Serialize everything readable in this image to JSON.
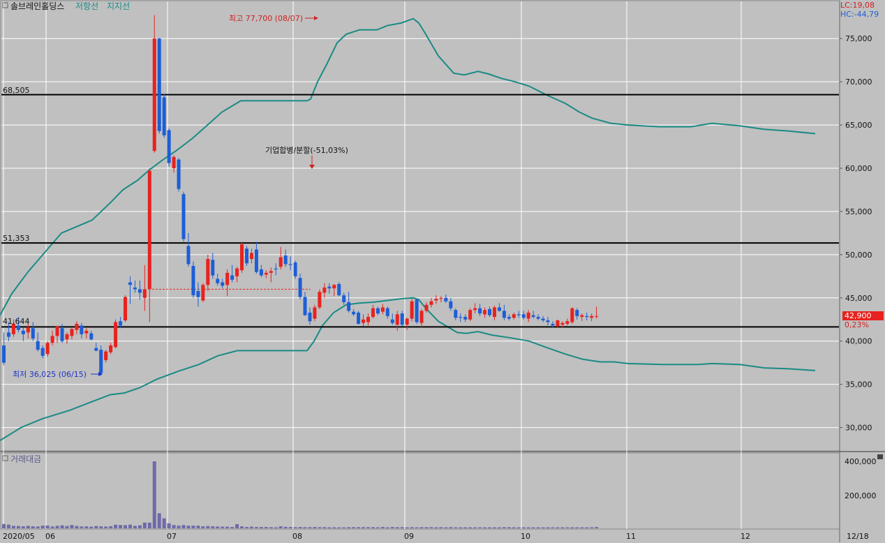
{
  "header": {
    "stock_name": "솔브레인홀딩스",
    "resistance_label": "저항선",
    "support_label": "지지선",
    "lc_label": "LC:19,08",
    "hc_label": "HC:-44,79"
  },
  "volume_panel": {
    "title": "거래대금",
    "ticks": [
      "400,000",
      "200,000"
    ]
  },
  "annotations": {
    "high": "최고 77,700 (08/07)",
    "low": "최저 36,025 (06/15)",
    "split_event": "기업합병/분할(-51,03%)",
    "current_price": "42,900",
    "change_pct": "0,23%",
    "line_68505": "68,505",
    "line_51353": "51,353",
    "line_41644": "41,644"
  },
  "colors": {
    "background": "#c0c0c0",
    "up": "#e8221e",
    "down": "#1c5ed6",
    "band": "#1a8a84",
    "volume": "#6f6ba8",
    "annotation_high": "#d42020",
    "annotation_low": "#1e32c8"
  },
  "chart_data": {
    "type": "candlestick",
    "ylim": [
      27000,
      80000
    ],
    "y_ticks": [
      30000,
      35000,
      40000,
      45000,
      50000,
      55000,
      60000,
      65000,
      70000,
      75000
    ],
    "y_tick_labels": [
      "30,000",
      "35,000",
      "40,000",
      "45,000",
      "50,000",
      "55,000",
      "60,000",
      "65,000",
      "70,000",
      "75,000"
    ],
    "x_labels": [
      "2020/05",
      "06",
      "07",
      "08",
      "09",
      "10",
      "11",
      "12",
      "12/18"
    ],
    "horizontal_lines": [
      68505,
      51353,
      41644
    ],
    "split_marker_price": 46000,
    "volume_ylim": [
      0,
      420000
    ],
    "candles": [
      [
        39500,
        41000,
        37200,
        37500,
        26000
      ],
      [
        41000,
        42200,
        40000,
        40500,
        22000
      ],
      [
        40800,
        42500,
        40500,
        42000,
        15000
      ],
      [
        41800,
        42800,
        41000,
        41300,
        14000
      ],
      [
        41200,
        41600,
        40000,
        40800,
        12000
      ],
      [
        41000,
        42000,
        40300,
        41600,
        15000
      ],
      [
        41500,
        42200,
        40000,
        40300,
        12000
      ],
      [
        40000,
        41000,
        38800,
        39000,
        11000
      ],
      [
        39200,
        39500,
        38000,
        38300,
        16000
      ],
      [
        38500,
        40000,
        38200,
        39800,
        17000
      ],
      [
        39800,
        41200,
        39500,
        40600,
        11000
      ],
      [
        40600,
        41800,
        39800,
        41700,
        15000
      ],
      [
        41500,
        42000,
        39800,
        40000,
        18000
      ],
      [
        40200,
        41000,
        39700,
        40800,
        14000
      ],
      [
        40600,
        41600,
        40200,
        41400,
        20000
      ],
      [
        41300,
        42300,
        40800,
        42000,
        14000
      ],
      [
        41800,
        42100,
        40300,
        40800,
        11000
      ],
      [
        40900,
        41500,
        40300,
        41200,
        12000
      ],
      [
        40900,
        41200,
        40100,
        40200,
        10000
      ],
      [
        39200,
        39800,
        38800,
        38900,
        14000
      ],
      [
        39000,
        39500,
        36025,
        36300,
        12000
      ],
      [
        37800,
        39000,
        37500,
        38800,
        11000
      ],
      [
        38700,
        39800,
        38500,
        39500,
        13000
      ],
      [
        39300,
        42500,
        39200,
        42200,
        22000
      ],
      [
        42300,
        42800,
        41500,
        41800,
        20000
      ],
      [
        42400,
        45300,
        42200,
        45100,
        19000
      ],
      [
        46800,
        47500,
        44300,
        46500,
        22000
      ],
      [
        46200,
        47000,
        45600,
        46000,
        15000
      ],
      [
        46000,
        47000,
        44800,
        45600,
        18000
      ],
      [
        45000,
        48800,
        43500,
        46000,
        34000
      ],
      [
        46000,
        60000,
        42200,
        59700,
        34000
      ],
      [
        62000,
        77700,
        61800,
        75000,
        400000
      ],
      [
        75000,
        75100,
        64000,
        64300,
        90000
      ],
      [
        68200,
        68600,
        63500,
        63800,
        60000
      ],
      [
        64400,
        64600,
        60200,
        60600,
        30000
      ],
      [
        60000,
        61500,
        59500,
        61300,
        20000
      ],
      [
        61000,
        61200,
        57300,
        57600,
        16000
      ],
      [
        57000,
        57300,
        51500,
        51800,
        20000
      ],
      [
        51000,
        52500,
        48600,
        48900,
        16000
      ],
      [
        48700,
        49200,
        45000,
        45300,
        16000
      ],
      [
        45800,
        46800,
        44000,
        45100,
        16000
      ],
      [
        44700,
        46700,
        44500,
        46500,
        12000
      ],
      [
        46500,
        50000,
        45800,
        49500,
        14000
      ],
      [
        49400,
        50200,
        47200,
        47600,
        12000
      ],
      [
        47200,
        47800,
        46400,
        46700,
        11000
      ],
      [
        46800,
        47200,
        46100,
        46400,
        10000
      ],
      [
        46500,
        48300,
        45200,
        47900,
        10000
      ],
      [
        47600,
        48800,
        46800,
        47100,
        8000
      ],
      [
        47500,
        48600,
        46800,
        48400,
        25000
      ],
      [
        48200,
        51500,
        47900,
        51200,
        12000
      ],
      [
        50700,
        51000,
        48700,
        49000,
        8000
      ],
      [
        49500,
        50700,
        49000,
        50200,
        10000
      ],
      [
        50600,
        51500,
        47800,
        48000,
        8000
      ],
      [
        48300,
        48800,
        47400,
        47600,
        8000
      ],
      [
        47700,
        48200,
        47300,
        47900,
        8000
      ],
      [
        47900,
        48500,
        46800,
        48100,
        7000
      ],
      [
        48400,
        49000,
        47600,
        48300,
        6000
      ],
      [
        48600,
        50900,
        48300,
        49700,
        12000
      ],
      [
        49900,
        50600,
        48600,
        48900,
        9000
      ],
      [
        48900,
        49800,
        48200,
        48800,
        8000
      ],
      [
        49100,
        49300,
        47200,
        47500,
        7000
      ],
      [
        47300,
        47800,
        44800,
        45100,
        8000
      ],
      [
        45100,
        45700,
        42900,
        43000,
        7000
      ],
      [
        43300,
        43900,
        41900,
        42300,
        7000
      ],
      [
        42600,
        44200,
        42300,
        43900,
        8000
      ],
      [
        43900,
        46000,
        43700,
        45700,
        7000
      ],
      [
        45600,
        46700,
        45000,
        46200,
        7000
      ],
      [
        46300,
        46700,
        45500,
        46100,
        6000
      ],
      [
        46100,
        46600,
        45200,
        46500,
        6000
      ],
      [
        46600,
        46800,
        45200,
        45300,
        6000
      ],
      [
        45300,
        45600,
        44200,
        44500,
        6000
      ],
      [
        44500,
        45700,
        43300,
        43500,
        7000
      ],
      [
        43400,
        43700,
        42900,
        43100,
        7000
      ],
      [
        43300,
        43500,
        41900,
        42000,
        7000
      ],
      [
        42100,
        43100,
        41700,
        42500,
        7000
      ],
      [
        42200,
        43200,
        41800,
        42800,
        7000
      ],
      [
        42800,
        44200,
        42600,
        43800,
        7000
      ],
      [
        43800,
        44000,
        43000,
        43200,
        6000
      ],
      [
        43400,
        44300,
        43100,
        43900,
        8000
      ],
      [
        43800,
        44000,
        42600,
        42900,
        6000
      ],
      [
        42500,
        43200,
        41900,
        42100,
        8000
      ],
      [
        41900,
        43500,
        41200,
        43100,
        7000
      ],
      [
        43200,
        43500,
        41700,
        41900,
        7000
      ],
      [
        41900,
        42700,
        41300,
        42600,
        6000
      ],
      [
        42600,
        44900,
        42300,
        44600,
        7000
      ],
      [
        44800,
        44900,
        42000,
        42200,
        6000
      ],
      [
        42100,
        43700,
        41600,
        43500,
        7000
      ],
      [
        43500,
        44500,
        43300,
        44200,
        7000
      ],
      [
        44200,
        45000,
        43900,
        44600,
        7000
      ],
      [
        44700,
        45300,
        44300,
        44900,
        6000
      ],
      [
        44900,
        45200,
        44500,
        45000,
        7000
      ],
      [
        45000,
        45400,
        44400,
        44600,
        6000
      ],
      [
        44600,
        45000,
        43500,
        43800,
        7000
      ],
      [
        43600,
        43800,
        42400,
        42700,
        6000
      ],
      [
        42800,
        43200,
        42200,
        42700,
        6000
      ],
      [
        42800,
        43100,
        42200,
        42500,
        6000
      ],
      [
        42500,
        43800,
        42300,
        43600,
        6000
      ],
      [
        43600,
        44400,
        43200,
        43800,
        6000
      ],
      [
        43800,
        44300,
        42900,
        43200,
        6000
      ],
      [
        43100,
        43900,
        42700,
        43600,
        6000
      ],
      [
        43700,
        44000,
        42800,
        43000,
        6000
      ],
      [
        42800,
        44100,
        42400,
        43900,
        6000
      ],
      [
        43900,
        44400,
        43400,
        43500,
        6000
      ],
      [
        43500,
        44200,
        42400,
        42700,
        7000
      ],
      [
        42800,
        43100,
        42400,
        42600,
        7000
      ],
      [
        42700,
        43300,
        42500,
        43100,
        6000
      ],
      [
        43100,
        43500,
        42700,
        43000,
        6000
      ],
      [
        43100,
        43500,
        42500,
        42700,
        6000
      ],
      [
        42600,
        43600,
        42200,
        43300,
        6000
      ],
      [
        43000,
        43500,
        42600,
        42800,
        6000
      ],
      [
        42800,
        43100,
        42400,
        42600,
        6000
      ],
      [
        42600,
        42900,
        42200,
        42400,
        6000
      ],
      [
        42400,
        42800,
        41800,
        42200,
        6000
      ],
      [
        42000,
        42300,
        41600,
        41800,
        6000
      ],
      [
        41700,
        42500,
        41500,
        42400,
        6000
      ],
      [
        41900,
        42300,
        41600,
        42100,
        6000
      ],
      [
        42000,
        42600,
        41800,
        42300,
        6000
      ],
      [
        42200,
        43900,
        42000,
        43800,
        6000
      ],
      [
        43600,
        43800,
        42500,
        42900,
        6000
      ],
      [
        42800,
        43200,
        42300,
        43000,
        6000
      ],
      [
        42900,
        43300,
        42400,
        42800,
        6000
      ],
      [
        42700,
        43200,
        42300,
        42900,
        6000
      ],
      [
        42900,
        44000,
        42600,
        42900,
        8000
      ]
    ],
    "upper_band": [
      [
        0,
        43000
      ],
      [
        17,
        45500
      ],
      [
        40,
        48000
      ],
      [
        88,
        52500
      ],
      [
        132,
        54000
      ],
      [
        158,
        56000
      ],
      [
        176,
        57500
      ],
      [
        197,
        58600
      ],
      [
        214,
        59800
      ],
      [
        232,
        60900
      ],
      [
        252,
        62000
      ],
      [
        275,
        63400
      ],
      [
        296,
        64900
      ],
      [
        318,
        66500
      ],
      [
        345,
        67800
      ],
      [
        368,
        67800
      ],
      [
        420,
        67800
      ],
      [
        440,
        67800
      ],
      [
        445,
        68000
      ],
      [
        455,
        70000
      ],
      [
        468,
        72000
      ],
      [
        483,
        74500
      ],
      [
        496,
        75500
      ],
      [
        515,
        76000
      ],
      [
        540,
        76000
      ],
      [
        555,
        76500
      ],
      [
        575,
        76800
      ],
      [
        592,
        77300
      ],
      [
        600,
        76800
      ],
      [
        610,
        75500
      ],
      [
        628,
        73000
      ],
      [
        650,
        71000
      ],
      [
        665,
        70800
      ],
      [
        685,
        71200
      ],
      [
        700,
        70900
      ],
      [
        718,
        70400
      ],
      [
        738,
        70000
      ],
      [
        758,
        69500
      ],
      [
        785,
        68400
      ],
      [
        810,
        67500
      ],
      [
        830,
        66500
      ],
      [
        848,
        65800
      ],
      [
        875,
        65200
      ],
      [
        900,
        65000
      ],
      [
        945,
        64800
      ],
      [
        990,
        64800
      ],
      [
        1020,
        65200
      ],
      [
        1060,
        64900
      ],
      [
        1095,
        64500
      ],
      [
        1130,
        64300
      ],
      [
        1168,
        64000
      ]
    ],
    "lower_band": [
      [
        0,
        28500
      ],
      [
        30,
        30000
      ],
      [
        60,
        31000
      ],
      [
        100,
        32000
      ],
      [
        132,
        33000
      ],
      [
        158,
        33800
      ],
      [
        178,
        34000
      ],
      [
        200,
        34600
      ],
      [
        225,
        35600
      ],
      [
        255,
        36500
      ],
      [
        285,
        37300
      ],
      [
        312,
        38300
      ],
      [
        340,
        38900
      ],
      [
        395,
        38900
      ],
      [
        440,
        38900
      ],
      [
        450,
        40000
      ],
      [
        462,
        41800
      ],
      [
        478,
        43300
      ],
      [
        496,
        44200
      ],
      [
        515,
        44400
      ],
      [
        535,
        44500
      ],
      [
        555,
        44700
      ],
      [
        575,
        44900
      ],
      [
        592,
        45000
      ],
      [
        600,
        44800
      ],
      [
        610,
        43800
      ],
      [
        628,
        42300
      ],
      [
        655,
        41000
      ],
      [
        668,
        40900
      ],
      [
        685,
        41100
      ],
      [
        705,
        40700
      ],
      [
        730,
        40400
      ],
      [
        758,
        40000
      ],
      [
        785,
        39200
      ],
      [
        810,
        38500
      ],
      [
        835,
        37900
      ],
      [
        860,
        37600
      ],
      [
        880,
        37600
      ],
      [
        900,
        37400
      ],
      [
        950,
        37300
      ],
      [
        1000,
        37300
      ],
      [
        1020,
        37400
      ],
      [
        1060,
        37300
      ],
      [
        1095,
        36900
      ],
      [
        1130,
        36800
      ],
      [
        1168,
        36600
      ]
    ]
  }
}
